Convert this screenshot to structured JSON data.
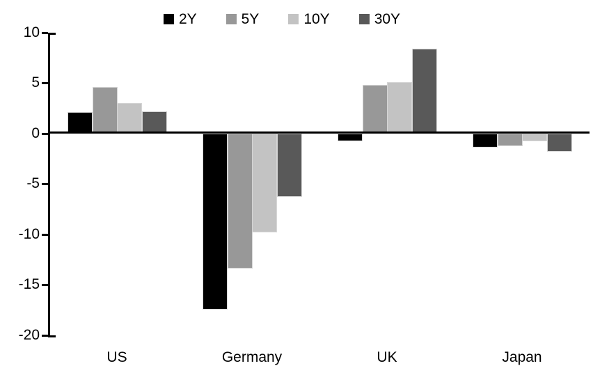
{
  "chart_data": {
    "type": "bar",
    "title": "",
    "categories": [
      "US",
      "Germany",
      "UK",
      "Japan"
    ],
    "series": [
      {
        "name": "2Y",
        "color": "#000000",
        "values": [
          2.1,
          -17.5,
          -0.8,
          -1.4
        ]
      },
      {
        "name": "5Y",
        "color": "#989898",
        "values": [
          4.6,
          -13.4,
          4.8,
          -1.3
        ]
      },
      {
        "name": "10Y",
        "color": "#c3c3c3",
        "values": [
          3.0,
          -9.8,
          5.1,
          -0.8
        ]
      },
      {
        "name": "30Y",
        "color": "#595959",
        "values": [
          2.2,
          -6.3,
          8.4,
          -1.8
        ]
      }
    ],
    "yticks": [
      10,
      5,
      0,
      -5,
      -10,
      -15,
      -20
    ],
    "ylim": [
      -20,
      10
    ],
    "xlabel": "",
    "ylabel": "",
    "grid": false,
    "legend_position": "top-center",
    "axis_color": "#000000",
    "background_color": "#ffffff"
  }
}
